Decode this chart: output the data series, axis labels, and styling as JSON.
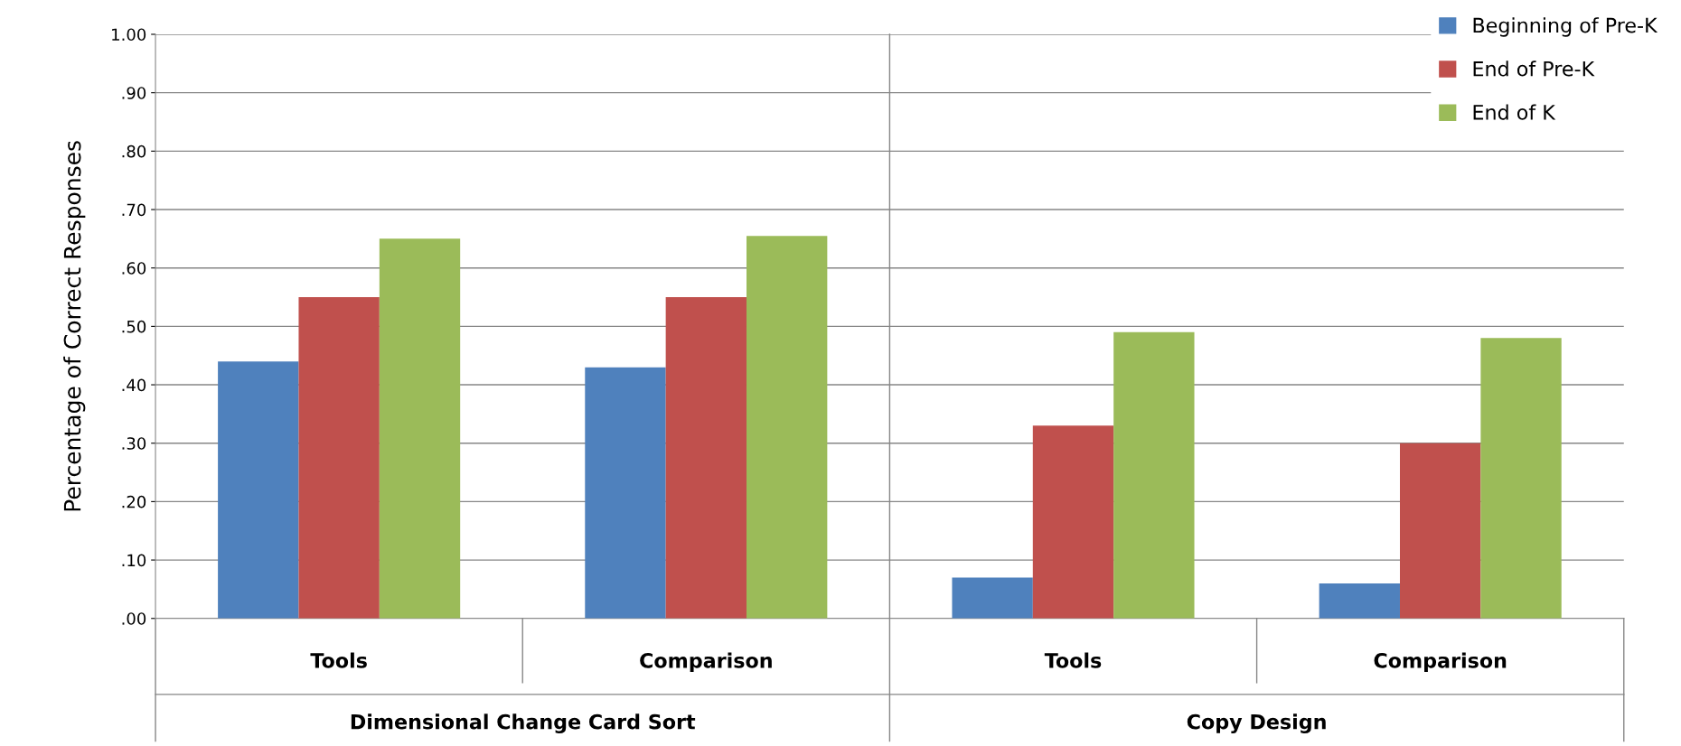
{
  "chart_data": {
    "type": "bar",
    "categories": [
      "Tools",
      "Comparison",
      "Tools",
      "Comparison"
    ],
    "series": [
      {
        "name": "Beginning of Pre-K",
        "color": "#4f81bd",
        "values": [
          0.44,
          0.43,
          0.07,
          0.06
        ]
      },
      {
        "name": "End of Pre-K",
        "color": "#c0504d",
        "values": [
          0.55,
          0.55,
          0.33,
          0.3
        ]
      },
      {
        "name": "End of K",
        "color": "#9bbb59",
        "values": [
          0.65,
          0.655,
          0.49,
          0.48
        ]
      }
    ],
    "ylabel": "Percentage of Correct Responses",
    "ylim": [
      0,
      1
    ],
    "yticks": [
      {
        "value": 0,
        "label": ".00"
      },
      {
        "value": 0.1,
        "label": ".10"
      },
      {
        "value": 0.2,
        "label": ".20"
      },
      {
        "value": 0.3,
        "label": ".30"
      },
      {
        "value": 0.4,
        "label": ".40"
      },
      {
        "value": 0.5,
        "label": ".50"
      },
      {
        "value": 0.6,
        "label": ".60"
      },
      {
        "value": 0.7,
        "label": ".70"
      },
      {
        "value": 0.8,
        "label": ".80"
      },
      {
        "value": 0.9,
        "label": ".90"
      },
      {
        "value": 1,
        "label": "1.00"
      }
    ],
    "annotations": [
      "Dimensional Change Card Sort",
      "Copy Design"
    ],
    "grid": "y",
    "legend": "top right"
  }
}
